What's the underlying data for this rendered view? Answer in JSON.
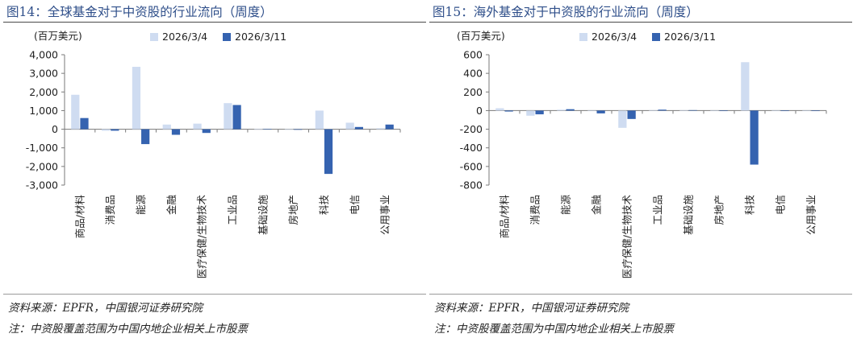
{
  "colors": {
    "series_a": "#cfdcf1",
    "series_b": "#3563b0",
    "title": "#2f4f8a"
  },
  "chart_data": [
    {
      "type": "bar",
      "title": "图14：全球基金对于中资股的行业流向（周度）",
      "ylabel": "(百万美元)",
      "ylim": [
        -3000,
        4000
      ],
      "yticks": [
        "4,000",
        "3,000",
        "2,000",
        "1,000",
        "0",
        "-1,000",
        "-2,000",
        "-3,000"
      ],
      "categories": [
        "商品/材料",
        "消费品",
        "能源",
        "金融",
        "医疗保健/生物技术",
        "工业品",
        "基础设施",
        "房地产",
        "科技",
        "电信",
        "公用事业"
      ],
      "series": [
        {
          "name": "2026/3/4",
          "values": [
            1850,
            -80,
            3350,
            250,
            300,
            1400,
            20,
            -20,
            1000,
            350,
            50
          ]
        },
        {
          "name": "2026/3/11",
          "values": [
            600,
            -80,
            -800,
            -300,
            -200,
            1300,
            10,
            -30,
            -2400,
            120,
            250
          ]
        }
      ],
      "source": "资料来源：EPFR，中国银河证券研究院",
      "note": "注：中资股覆盖范围为中国内地企业相关上市股票"
    },
    {
      "type": "bar",
      "title": "图15：海外基金对于中资股的行业流向（周度）",
      "ylabel": "(百万美元)",
      "ylim": [
        -800,
        600
      ],
      "yticks": [
        "600",
        "400",
        "200",
        "0",
        "-200",
        "-400",
        "-600",
        "-800"
      ],
      "categories": [
        "商品/材料",
        "消费品",
        "能源",
        "金融",
        "医疗保健/生物技术",
        "工业品",
        "基础设施",
        "房地产",
        "科技",
        "电信",
        "公用事业"
      ],
      "series": [
        {
          "name": "2026/3/4",
          "values": [
            25,
            -55,
            10,
            0,
            -185,
            5,
            5,
            0,
            520,
            0,
            0
          ]
        },
        {
          "name": "2026/3/11",
          "values": [
            -10,
            -40,
            15,
            -30,
            -90,
            10,
            5,
            0,
            -580,
            0,
            0
          ]
        }
      ],
      "source": "资料来源：EPFR，中国银河证券研究院",
      "note": "注：中资股覆盖范围为中国内地企业相关上市股票"
    }
  ]
}
